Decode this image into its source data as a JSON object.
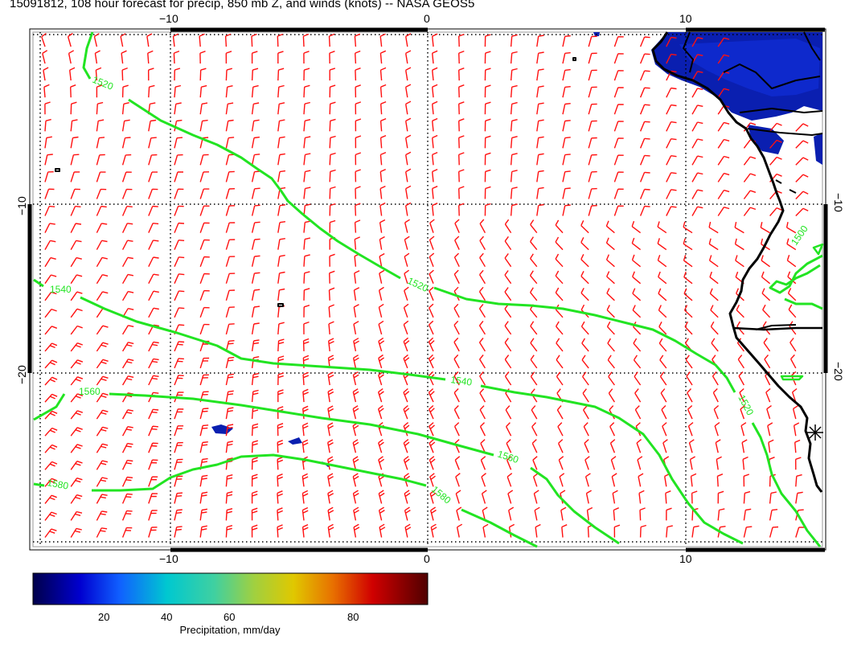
{
  "title": "15091812, 108 hour forecast for precip, 850 mb Z, and winds (knots) -- NASA GEOS5",
  "map": {
    "longitude_ticks": [
      "−10",
      "0",
      "10"
    ],
    "latitude_ticks": [
      "−10",
      "−20"
    ],
    "contour_color": "#22e422",
    "wind_barb_color": "#ff0000",
    "coastline_color": "#000000",
    "contour_labels": [
      {
        "text": "1520",
        "level": 1520
      },
      {
        "text": "1520",
        "level": 1520
      },
      {
        "text": "1520",
        "level": 1520
      },
      {
        "text": "1540",
        "level": 1540
      },
      {
        "text": "1540",
        "level": 1540
      },
      {
        "text": "1560",
        "level": 1560
      },
      {
        "text": "1560",
        "level": 1560
      },
      {
        "text": "1580",
        "level": 1580
      },
      {
        "text": "1580",
        "level": 1580
      },
      {
        "text": "1500",
        "level": 1500
      }
    ]
  },
  "colorbar": {
    "title": "Precipitation, mm/day",
    "ticks": [
      "20",
      "40",
      "60",
      "80"
    ],
    "colors": [
      "#00008b",
      "#0000ff",
      "#00c8c8",
      "#90d050",
      "#e0c000",
      "#e04000",
      "#c80000",
      "#600000"
    ]
  }
}
